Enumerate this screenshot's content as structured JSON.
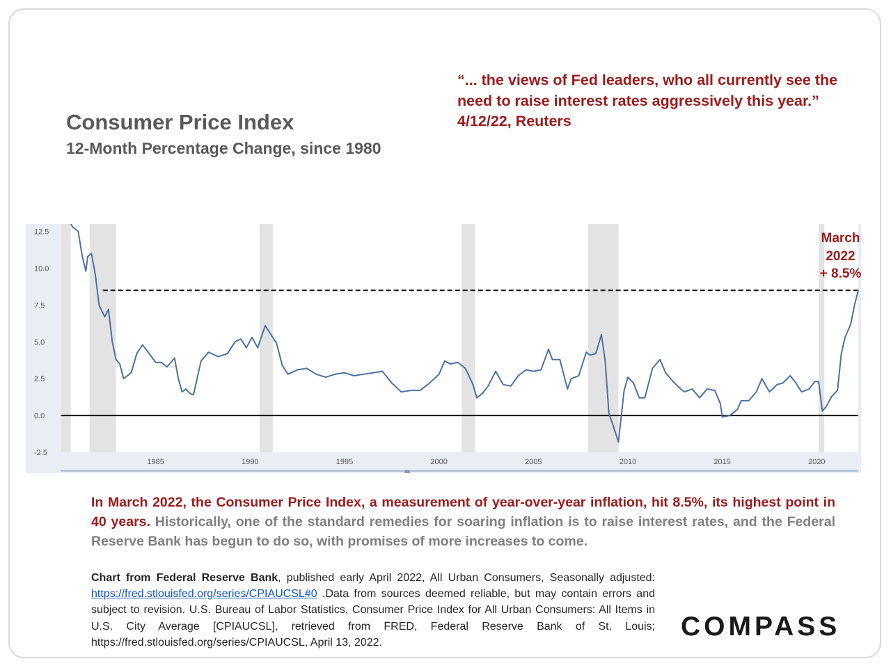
{
  "header": {
    "title": "Consumer Price Index",
    "subtitle": "12-Month Percentage Change, since 1980"
  },
  "quote": {
    "line1": "“... the views of Fed leaders, who all currently see the",
    "line2": "need to raise interest rates aggressively this year.”",
    "line3": "4/12/22, Reuters"
  },
  "callout": {
    "line1": "March",
    "line2": "2022",
    "line3": "+ 8.5%"
  },
  "summary": {
    "highlight": "In March 2022, the Consumer Price Index, a measurement of year-over-year inflation, hit 8.5%, its highest point in 40 years.",
    "body": " Historically, one of the standard remedies for soaring inflation is to raise interest rates, and the Federal Reserve Bank has begun to do so, with promises of more increases to come."
  },
  "source": {
    "bold": "Chart from Federal Reserve Bank",
    "part1": ", published early April 2022, All Urban Consumers, Seasonally adjusted: ",
    "link": "https://fred.stlouisfed.org/series/CPIAUCSL#0",
    "part2": " .Data from sources deemed reliable, but may contain errors and subject to revision. U.S. Bureau of Labor Statistics, Consumer Price Index for All Urban Consumers: All Items in U.S. City Average [CPIAUCSL], retrieved from FRED, Federal Reserve Bank of St. Louis; https://fred.stlouisfed.org/series/CPIAUCSL, April 13, 2022."
  },
  "logo": "COMPASS",
  "colors": {
    "line": "#4a72a6",
    "accent": "#9c1b1b",
    "recession": "#e3e3e3",
    "chart_bg": "#e9edf4"
  },
  "chart_data": {
    "type": "line",
    "title": "",
    "xlabel": "",
    "ylabel": "",
    "xlim": [
      1980.0,
      2022.2
    ],
    "ylim": [
      -2.5,
      13.0
    ],
    "x_ticks": [
      1985,
      1990,
      1995,
      2000,
      2005,
      2010,
      2015,
      2020
    ],
    "y_ticks": [
      12.5,
      10.0,
      7.5,
      5.0,
      2.5,
      0.0,
      -2.5
    ],
    "y_tick_labels": [
      "12.5",
      "10.0",
      "7.5",
      "5.0",
      "2.5",
      "0.0",
      "-2.5"
    ],
    "recessions": [
      [
        1980.0,
        1980.5
      ],
      [
        1981.5,
        1982.9
      ],
      [
        1990.5,
        1991.2
      ],
      [
        2001.2,
        2001.9
      ],
      [
        2007.9,
        2009.5
      ],
      [
        2020.1,
        2020.4
      ]
    ],
    "reference_line": {
      "value": 8.5,
      "style": "dashed",
      "from": 1982.2,
      "to": 2022.2
    },
    "zero_line": 0.0,
    "grid": false,
    "series": [
      {
        "x": [
          1980.4,
          1980.6,
          1980.9,
          1981.1,
          1981.3,
          1981.4,
          1981.6,
          1981.8,
          1982.0,
          1982.3,
          1982.5,
          1982.7,
          1982.9,
          1983.1,
          1983.3,
          1983.5,
          1983.7,
          1984.0,
          1984.3,
          1984.6,
          1985.0,
          1985.3,
          1985.6,
          1986.0,
          1986.2,
          1986.4,
          1986.6,
          1986.8,
          1987.0,
          1987.4,
          1987.8,
          1988.3,
          1988.8,
          1989.2,
          1989.5,
          1989.8,
          1990.1,
          1990.4,
          1990.8,
          1991.0,
          1991.4,
          1991.7,
          1992.0,
          1992.5,
          1993.0,
          1993.5,
          1994.0,
          1994.5,
          1995.0,
          1995.5,
          1996.0,
          1996.5,
          1997.0,
          1997.5,
          1998.0,
          1998.5,
          1999.0,
          1999.5,
          2000.0,
          2000.3,
          2000.6,
          2001.0,
          2001.4,
          2001.8,
          2002.0,
          2002.3,
          2002.6,
          2003.0,
          2003.4,
          2003.8,
          2004.2,
          2004.6,
          2005.0,
          2005.4,
          2005.8,
          2006.0,
          2006.4,
          2006.8,
          2007.0,
          2007.4,
          2007.8,
          2008.0,
          2008.3,
          2008.6,
          2008.8,
          2009.0,
          2009.2,
          2009.5,
          2009.8,
          2010.0,
          2010.3,
          2010.6,
          2010.9,
          2011.3,
          2011.7,
          2012.0,
          2012.4,
          2012.8,
          2013.0,
          2013.4,
          2013.8,
          2014.2,
          2014.6,
          2014.9,
          2015.0,
          2015.4,
          2015.8,
          2016.0,
          2016.4,
          2016.8,
          2017.1,
          2017.5,
          2017.9,
          2018.2,
          2018.6,
          2018.9,
          2019.2,
          2019.6,
          2019.9,
          2020.1,
          2020.3,
          2020.5,
          2020.8,
          2021.1,
          2021.3,
          2021.5,
          2021.8,
          2022.0,
          2022.2
        ],
        "y": [
          13.3,
          12.8,
          12.5,
          10.9,
          9.8,
          10.8,
          11.0,
          9.6,
          7.5,
          6.7,
          7.2,
          5.0,
          3.8,
          3.5,
          2.5,
          2.7,
          2.9,
          4.2,
          4.8,
          4.3,
          3.6,
          3.6,
          3.3,
          3.9,
          2.5,
          1.6,
          1.8,
          1.5,
          1.4,
          3.7,
          4.3,
          4.0,
          4.2,
          5.0,
          5.2,
          4.6,
          5.3,
          4.6,
          6.1,
          5.7,
          4.9,
          3.4,
          2.8,
          3.1,
          3.2,
          2.8,
          2.6,
          2.8,
          2.9,
          2.7,
          2.8,
          2.9,
          3.0,
          2.2,
          1.6,
          1.7,
          1.7,
          2.2,
          2.8,
          3.7,
          3.5,
          3.6,
          3.2,
          2.1,
          1.2,
          1.5,
          2.0,
          3.0,
          2.1,
          2.0,
          2.7,
          3.1,
          3.0,
          3.1,
          4.5,
          3.8,
          3.8,
          1.8,
          2.5,
          2.7,
          4.3,
          4.1,
          4.2,
          5.5,
          3.7,
          0.1,
          -0.6,
          -1.8,
          1.7,
          2.6,
          2.2,
          1.2,
          1.2,
          3.2,
          3.8,
          2.9,
          2.3,
          1.8,
          1.6,
          1.8,
          1.2,
          1.8,
          1.7,
          0.8,
          -0.1,
          0.0,
          0.4,
          1.0,
          1.0,
          1.6,
          2.5,
          1.6,
          2.1,
          2.2,
          2.7,
          2.2,
          1.6,
          1.8,
          2.3,
          2.3,
          0.3,
          0.6,
          1.3,
          1.7,
          4.2,
          5.3,
          6.2,
          7.5,
          8.5
        ]
      }
    ]
  }
}
